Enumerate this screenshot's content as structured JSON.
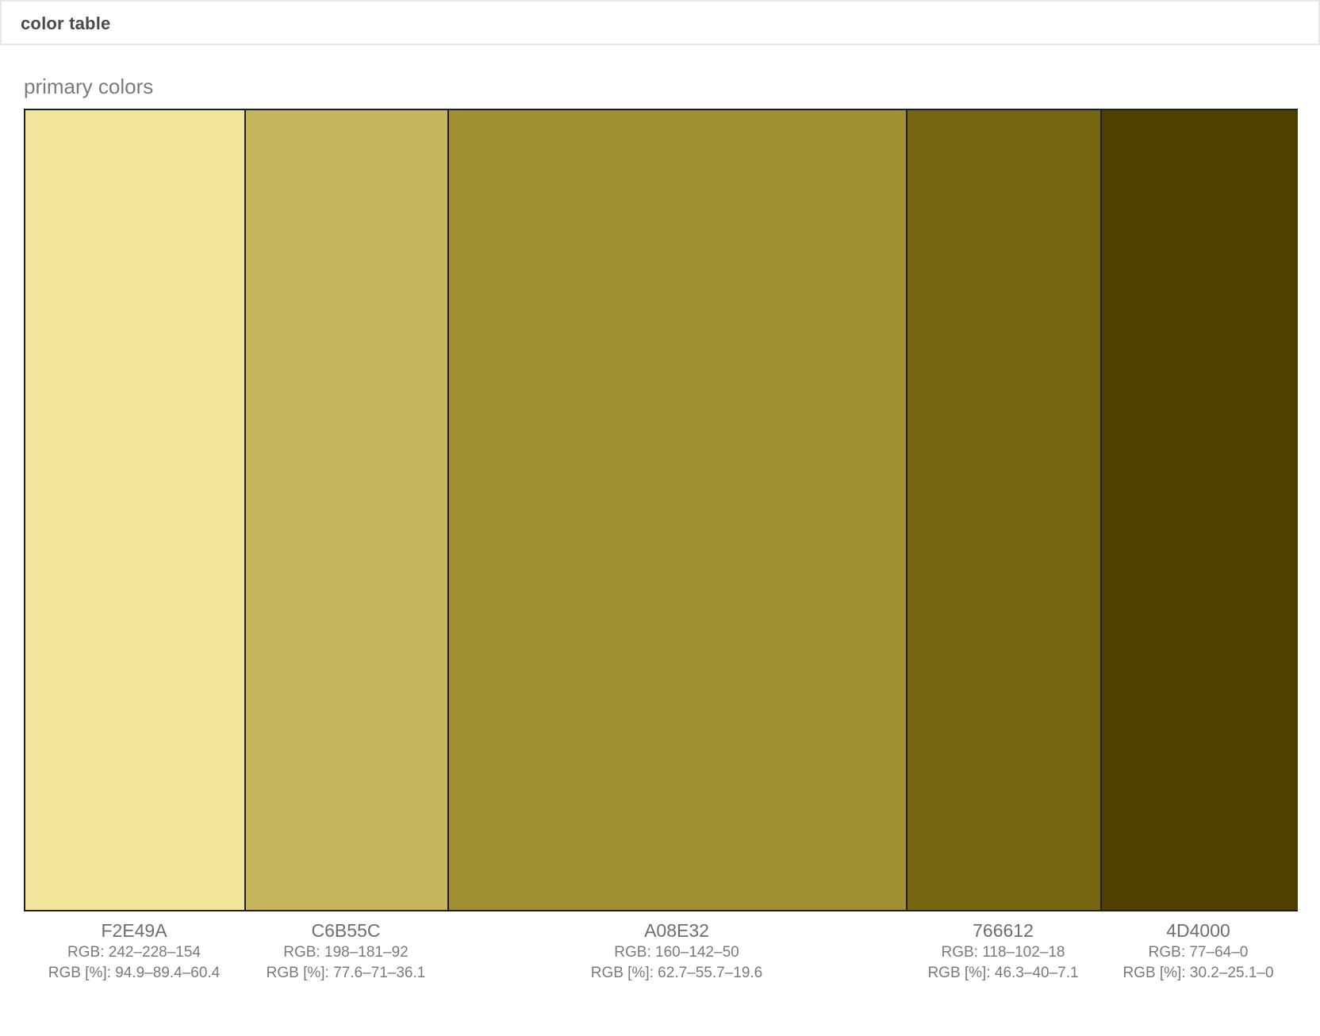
{
  "header": {
    "title": "color table"
  },
  "section": {
    "title": "primary colors"
  },
  "swatches": [
    {
      "hex": "F2E49A",
      "color": "#F2E49A",
      "rgb": "RGB: 242–228–154",
      "rgb_pct": "RGB [%]: 94.9–89.4–60.4"
    },
    {
      "hex": "C6B55C",
      "color": "#C6B55C",
      "rgb": "RGB: 198–181–92",
      "rgb_pct": "RGB [%]: 77.6–71–36.1"
    },
    {
      "hex": "A08E32",
      "color": "#A08E32",
      "rgb": "RGB: 160–142–50",
      "rgb_pct": "RGB [%]: 62.7–55.7–19.6"
    },
    {
      "hex": "766612",
      "color": "#766612",
      "rgb": "RGB: 118–102–18",
      "rgb_pct": "RGB [%]: 46.3–40–7.1"
    },
    {
      "hex": "4D4000",
      "color": "#4D4000",
      "rgb": "RGB: 77–64–0",
      "rgb_pct": "RGB [%]: 30.2–25.1–0"
    }
  ]
}
